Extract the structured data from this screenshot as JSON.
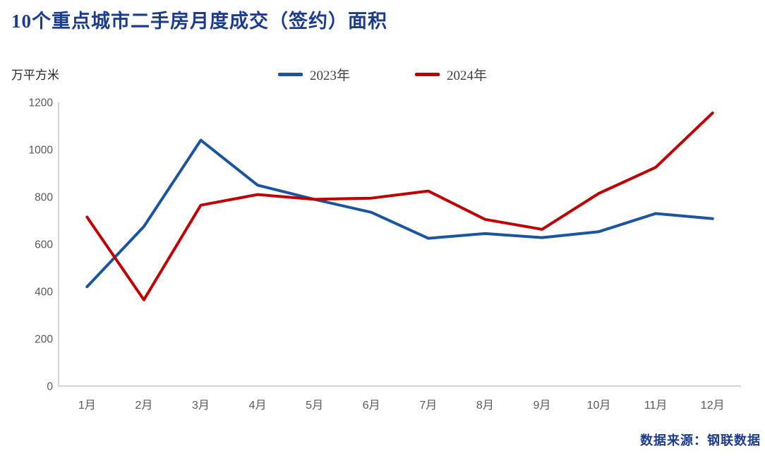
{
  "title": "10个重点城市二手房月度成交（签约）面积",
  "y_unit_label": "万平方米",
  "source": "数据来源：钢联数据",
  "chart_data": {
    "type": "line",
    "title": "10个重点城市二手房月度成交（签约）面积",
    "ylabel": "万平方米",
    "categories": [
      "1月",
      "2月",
      "3月",
      "4月",
      "5月",
      "6月",
      "7月",
      "8月",
      "9月",
      "10月",
      "11月",
      "12月"
    ],
    "series": [
      {
        "name": "2023年",
        "color": "#1b559e",
        "values": [
          420,
          675,
          1040,
          850,
          790,
          735,
          625,
          645,
          628,
          653,
          730,
          708
        ]
      },
      {
        "name": "2024年",
        "color": "#c00000",
        "values": [
          715,
          365,
          765,
          810,
          790,
          795,
          825,
          705,
          663,
          815,
          925,
          1155
        ]
      }
    ],
    "ylim": [
      0,
      1200
    ],
    "yticks": [
      0,
      200,
      400,
      600,
      800,
      1000,
      1200
    ],
    "grid": false,
    "legend_position": "top-center",
    "axis_color": "#c6c6c6",
    "tick_label_color": "#595959"
  }
}
